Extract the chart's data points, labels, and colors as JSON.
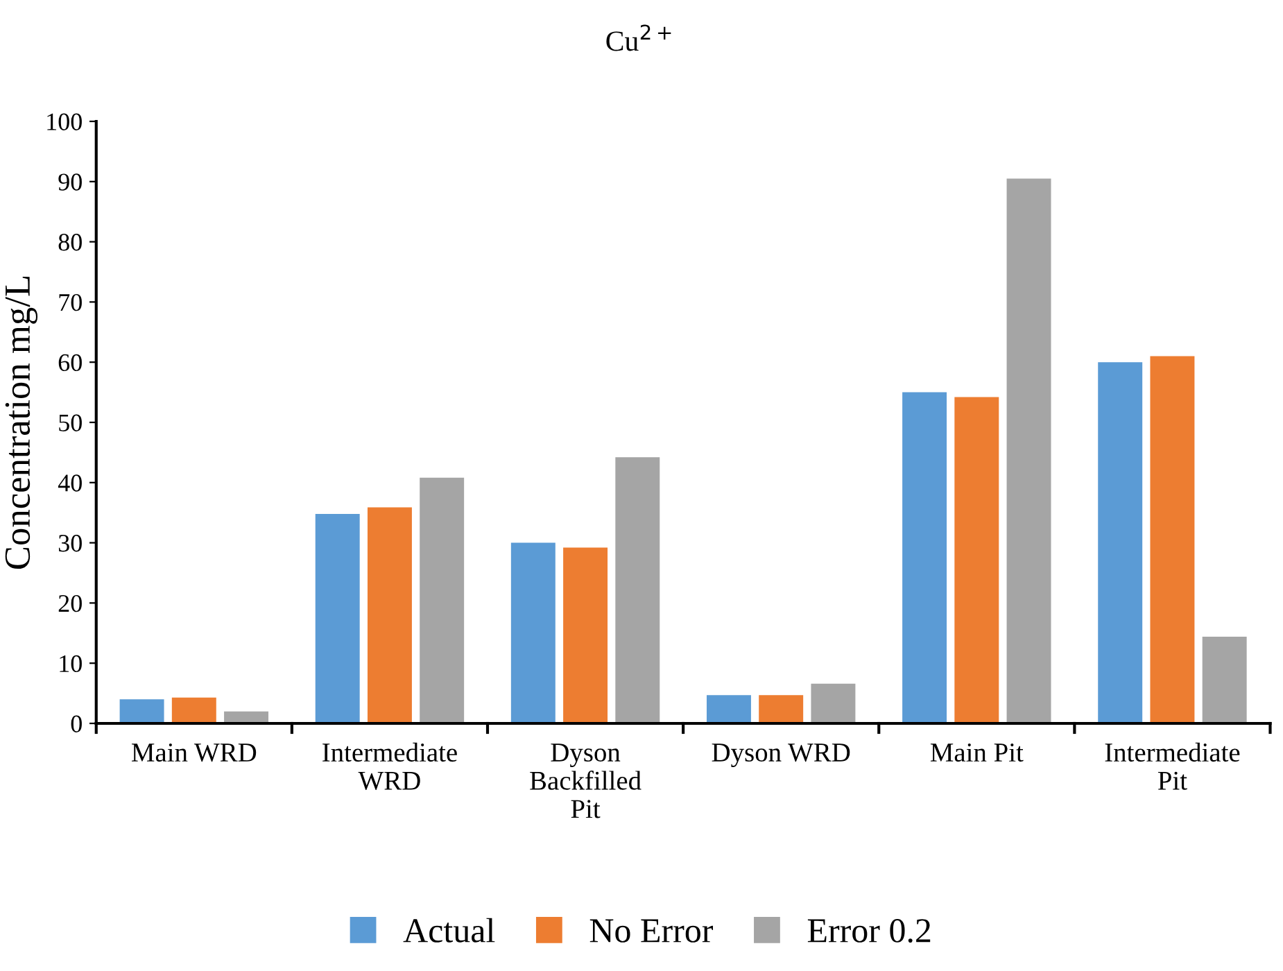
{
  "chart_data": {
    "type": "bar",
    "title": "Cu$^{2+}$",
    "ylabel": "Concentration mg/L",
    "categories": [
      "Main WRD",
      "Intermediate\nWRD",
      "Dyson\nBackfilled\nPit",
      "Dyson WRD",
      "Main Pit",
      "Intermediate\nPit"
    ],
    "series": [
      {
        "name": "Actual",
        "color": "#5b9bd5",
        "values": [
          4.0,
          34.8,
          30.0,
          4.7,
          55.0,
          60.0
        ]
      },
      {
        "name": "No Error",
        "color": "#ed7d31",
        "values": [
          4.3,
          35.9,
          29.2,
          4.7,
          54.2,
          61.0
        ]
      },
      {
        "name": "Error 0.2",
        "color": "#a5a5a5",
        "values": [
          2.0,
          40.8,
          44.2,
          6.6,
          90.5,
          14.4
        ]
      }
    ],
    "ylim": [
      0,
      100
    ],
    "yticks": [
      0,
      10,
      20,
      30,
      40,
      50,
      60,
      70,
      80,
      90,
      100
    ],
    "grid": false,
    "legend": "bottom"
  }
}
